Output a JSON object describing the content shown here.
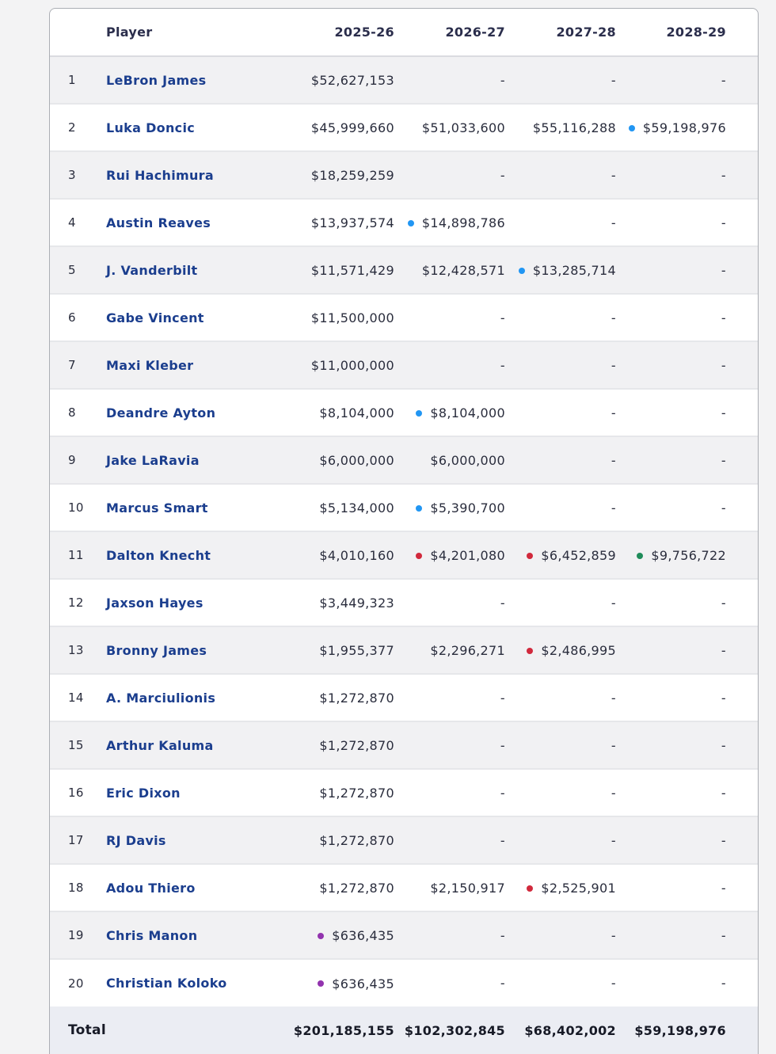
{
  "table": {
    "columns": [
      "",
      "Player",
      "2025-26",
      "2026-27",
      "2027-28",
      "2028-29"
    ],
    "dot_colors": {
      "blue": "#2196f3",
      "red": "#d1293c",
      "green": "#208c5a",
      "purple": "#9233ae"
    },
    "rows": [
      {
        "rank": "1",
        "player": "LeBron James",
        "cells": [
          {
            "value": "$52,627,153",
            "dot": null
          },
          {
            "value": "-",
            "dot": null
          },
          {
            "value": "-",
            "dot": null
          },
          {
            "value": "-",
            "dot": null
          }
        ]
      },
      {
        "rank": "2",
        "player": "Luka Doncic",
        "cells": [
          {
            "value": "$45,999,660",
            "dot": null
          },
          {
            "value": "$51,033,600",
            "dot": null
          },
          {
            "value": "$55,116,288",
            "dot": null
          },
          {
            "value": "$59,198,976",
            "dot": "blue"
          }
        ]
      },
      {
        "rank": "3",
        "player": "Rui Hachimura",
        "cells": [
          {
            "value": "$18,259,259",
            "dot": null
          },
          {
            "value": "-",
            "dot": null
          },
          {
            "value": "-",
            "dot": null
          },
          {
            "value": "-",
            "dot": null
          }
        ]
      },
      {
        "rank": "4",
        "player": "Austin Reaves",
        "cells": [
          {
            "value": "$13,937,574",
            "dot": null
          },
          {
            "value": "$14,898,786",
            "dot": "blue"
          },
          {
            "value": "-",
            "dot": null
          },
          {
            "value": "-",
            "dot": null
          }
        ]
      },
      {
        "rank": "5",
        "player": "J. Vanderbilt",
        "cells": [
          {
            "value": "$11,571,429",
            "dot": null
          },
          {
            "value": "$12,428,571",
            "dot": null
          },
          {
            "value": "$13,285,714",
            "dot": "blue"
          },
          {
            "value": "-",
            "dot": null
          }
        ]
      },
      {
        "rank": "6",
        "player": "Gabe Vincent",
        "cells": [
          {
            "value": "$11,500,000",
            "dot": null
          },
          {
            "value": "-",
            "dot": null
          },
          {
            "value": "-",
            "dot": null
          },
          {
            "value": "-",
            "dot": null
          }
        ]
      },
      {
        "rank": "7",
        "player": "Maxi Kleber",
        "cells": [
          {
            "value": "$11,000,000",
            "dot": null
          },
          {
            "value": "-",
            "dot": null
          },
          {
            "value": "-",
            "dot": null
          },
          {
            "value": "-",
            "dot": null
          }
        ]
      },
      {
        "rank": "8",
        "player": "Deandre Ayton",
        "cells": [
          {
            "value": "$8,104,000",
            "dot": null
          },
          {
            "value": "$8,104,000",
            "dot": "blue"
          },
          {
            "value": "-",
            "dot": null
          },
          {
            "value": "-",
            "dot": null
          }
        ]
      },
      {
        "rank": "9",
        "player": "Jake LaRavia",
        "cells": [
          {
            "value": "$6,000,000",
            "dot": null
          },
          {
            "value": "$6,000,000",
            "dot": null
          },
          {
            "value": "-",
            "dot": null
          },
          {
            "value": "-",
            "dot": null
          }
        ]
      },
      {
        "rank": "10",
        "player": "Marcus Smart",
        "cells": [
          {
            "value": "$5,134,000",
            "dot": null
          },
          {
            "value": "$5,390,700",
            "dot": "blue"
          },
          {
            "value": "-",
            "dot": null
          },
          {
            "value": "-",
            "dot": null
          }
        ]
      },
      {
        "rank": "11",
        "player": "Dalton Knecht",
        "cells": [
          {
            "value": "$4,010,160",
            "dot": null
          },
          {
            "value": "$4,201,080",
            "dot": "red"
          },
          {
            "value": "$6,452,859",
            "dot": "red"
          },
          {
            "value": "$9,756,722",
            "dot": "green"
          }
        ]
      },
      {
        "rank": "12",
        "player": "Jaxson Hayes",
        "cells": [
          {
            "value": "$3,449,323",
            "dot": null
          },
          {
            "value": "-",
            "dot": null
          },
          {
            "value": "-",
            "dot": null
          },
          {
            "value": "-",
            "dot": null
          }
        ]
      },
      {
        "rank": "13",
        "player": "Bronny James",
        "cells": [
          {
            "value": "$1,955,377",
            "dot": null
          },
          {
            "value": "$2,296,271",
            "dot": null
          },
          {
            "value": "$2,486,995",
            "dot": "red"
          },
          {
            "value": "-",
            "dot": null
          }
        ]
      },
      {
        "rank": "14",
        "player": "A. Marciulionis",
        "cells": [
          {
            "value": "$1,272,870",
            "dot": null
          },
          {
            "value": "-",
            "dot": null
          },
          {
            "value": "-",
            "dot": null
          },
          {
            "value": "-",
            "dot": null
          }
        ]
      },
      {
        "rank": "15",
        "player": "Arthur Kaluma",
        "cells": [
          {
            "value": "$1,272,870",
            "dot": null
          },
          {
            "value": "-",
            "dot": null
          },
          {
            "value": "-",
            "dot": null
          },
          {
            "value": "-",
            "dot": null
          }
        ]
      },
      {
        "rank": "16",
        "player": "Eric Dixon",
        "cells": [
          {
            "value": "$1,272,870",
            "dot": null
          },
          {
            "value": "-",
            "dot": null
          },
          {
            "value": "-",
            "dot": null
          },
          {
            "value": "-",
            "dot": null
          }
        ]
      },
      {
        "rank": "17",
        "player": "RJ Davis",
        "cells": [
          {
            "value": "$1,272,870",
            "dot": null
          },
          {
            "value": "-",
            "dot": null
          },
          {
            "value": "-",
            "dot": null
          },
          {
            "value": "-",
            "dot": null
          }
        ]
      },
      {
        "rank": "18",
        "player": "Adou Thiero",
        "cells": [
          {
            "value": "$1,272,870",
            "dot": null
          },
          {
            "value": "$2,150,917",
            "dot": null
          },
          {
            "value": "$2,525,901",
            "dot": "red"
          },
          {
            "value": "-",
            "dot": null
          }
        ]
      },
      {
        "rank": "19",
        "player": "Chris Manon",
        "cells": [
          {
            "value": "$636,435",
            "dot": "purple"
          },
          {
            "value": "-",
            "dot": null
          },
          {
            "value": "-",
            "dot": null
          },
          {
            "value": "-",
            "dot": null
          }
        ]
      },
      {
        "rank": "20",
        "player": "Christian Koloko",
        "cells": [
          {
            "value": "$636,435",
            "dot": "purple"
          },
          {
            "value": "-",
            "dot": null
          },
          {
            "value": "-",
            "dot": null
          },
          {
            "value": "-",
            "dot": null
          }
        ]
      }
    ],
    "total": {
      "label": "Total",
      "values": [
        "$201,185,155",
        "$102,302,845",
        "$68,402,002",
        "$59,198,976"
      ]
    }
  }
}
